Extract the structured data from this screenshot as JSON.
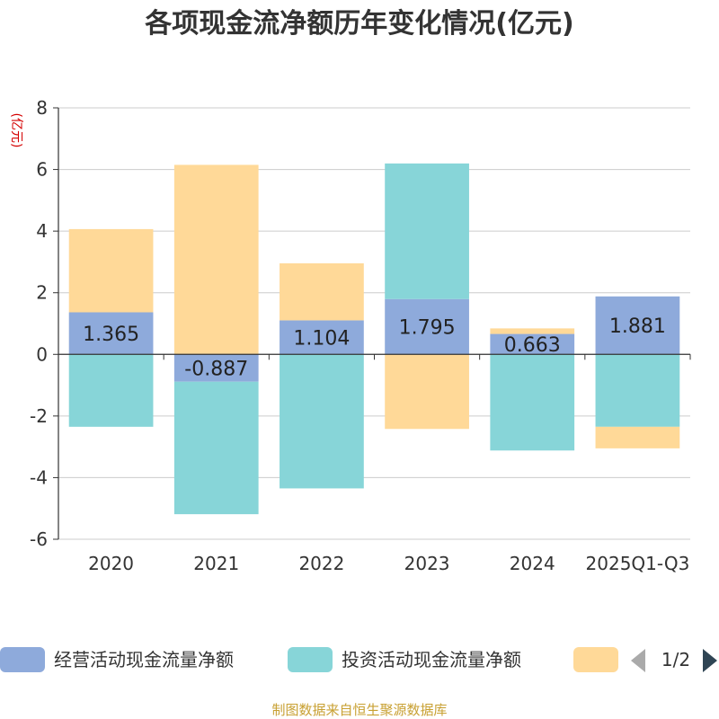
{
  "chart_data": {
    "type": "bar",
    "stacked": true,
    "title": "各项现金流净额历年变化情况(亿元)",
    "ylabel": "(亿元)",
    "xlabel": "",
    "categories": [
      "2020",
      "2021",
      "2022",
      "2023",
      "2024",
      "2025Q1-Q3"
    ],
    "ylim": [
      -6,
      8
    ],
    "yticks": [
      -6,
      -4,
      -2,
      0,
      2,
      4,
      6,
      8
    ],
    "grid": true,
    "series": [
      {
        "name": "经营活动现金流量净额",
        "color": "#8eaadb",
        "values": [
          1.365,
          -0.887,
          1.104,
          1.795,
          0.663,
          1.881
        ],
        "show_labels": true
      },
      {
        "name": "投资活动现金流量净额",
        "color": "#87d5d8",
        "values": [
          -2.35,
          -4.3,
          -4.35,
          4.4,
          -3.12,
          -2.35
        ]
      },
      {
        "name": "",
        "color": "#ffd998",
        "values": [
          2.7,
          6.15,
          1.85,
          -2.42,
          0.18,
          -0.7
        ]
      }
    ],
    "legend": {
      "placement": "bottom",
      "page": "1/2"
    },
    "source": "制图数据来自恒生聚源数据库"
  }
}
